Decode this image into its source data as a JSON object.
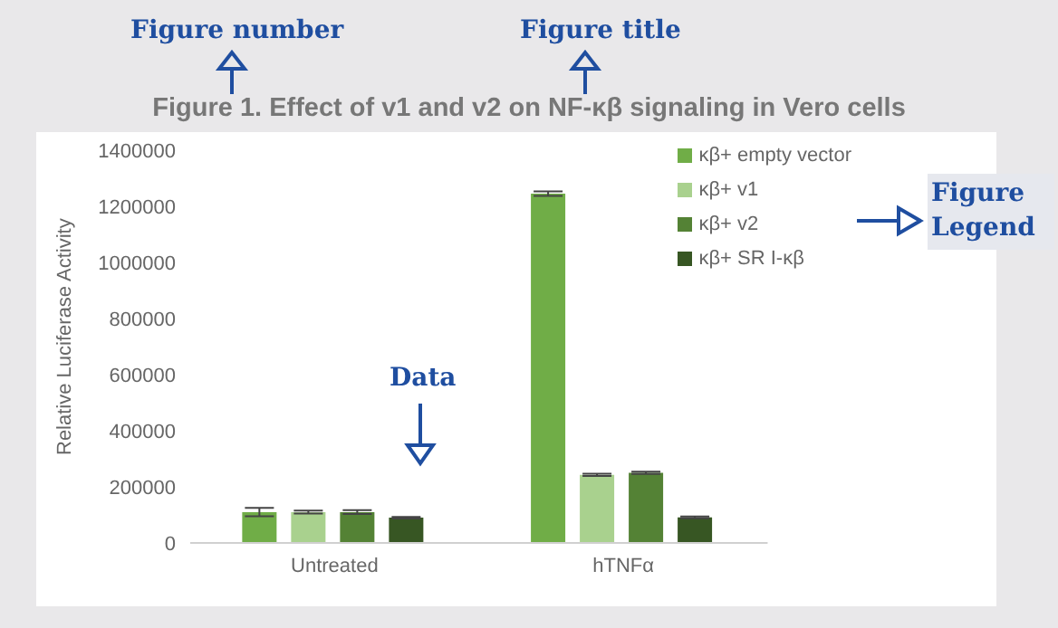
{
  "chart_data": {
    "type": "bar",
    "title": "Figure 1. Effect of v1 and v2 on NF-κβ signaling in Vero cells",
    "ylabel": "Relative Luciferase Activity",
    "categories": [
      "Untreated",
      "hTNFα"
    ],
    "series": [
      {
        "name": "κβ+ empty vector",
        "color": "#70ad47",
        "values": [
          110000,
          1245000
        ],
        "errors": [
          15000,
          8000
        ]
      },
      {
        "name": "κβ+ v1",
        "color": "#a9d18e",
        "values": [
          110000,
          243000
        ],
        "errors": [
          5000,
          4000
        ]
      },
      {
        "name": "κβ+ v2",
        "color": "#548235",
        "values": [
          110000,
          250000
        ],
        "errors": [
          7000,
          4000
        ]
      },
      {
        "name": "κβ+ SR I-κβ",
        "color": "#375623",
        "values": [
          90000,
          91000
        ],
        "errors": [
          3000,
          3000
        ]
      }
    ],
    "ylim": [
      0,
      1400000
    ],
    "yticks": [
      0,
      200000,
      400000,
      600000,
      800000,
      1000000,
      1200000,
      1400000
    ],
    "grid": false,
    "legend": "top right",
    "annotations": [
      "Figure number",
      "Figure title",
      "Data",
      "Figure Legend"
    ]
  }
}
